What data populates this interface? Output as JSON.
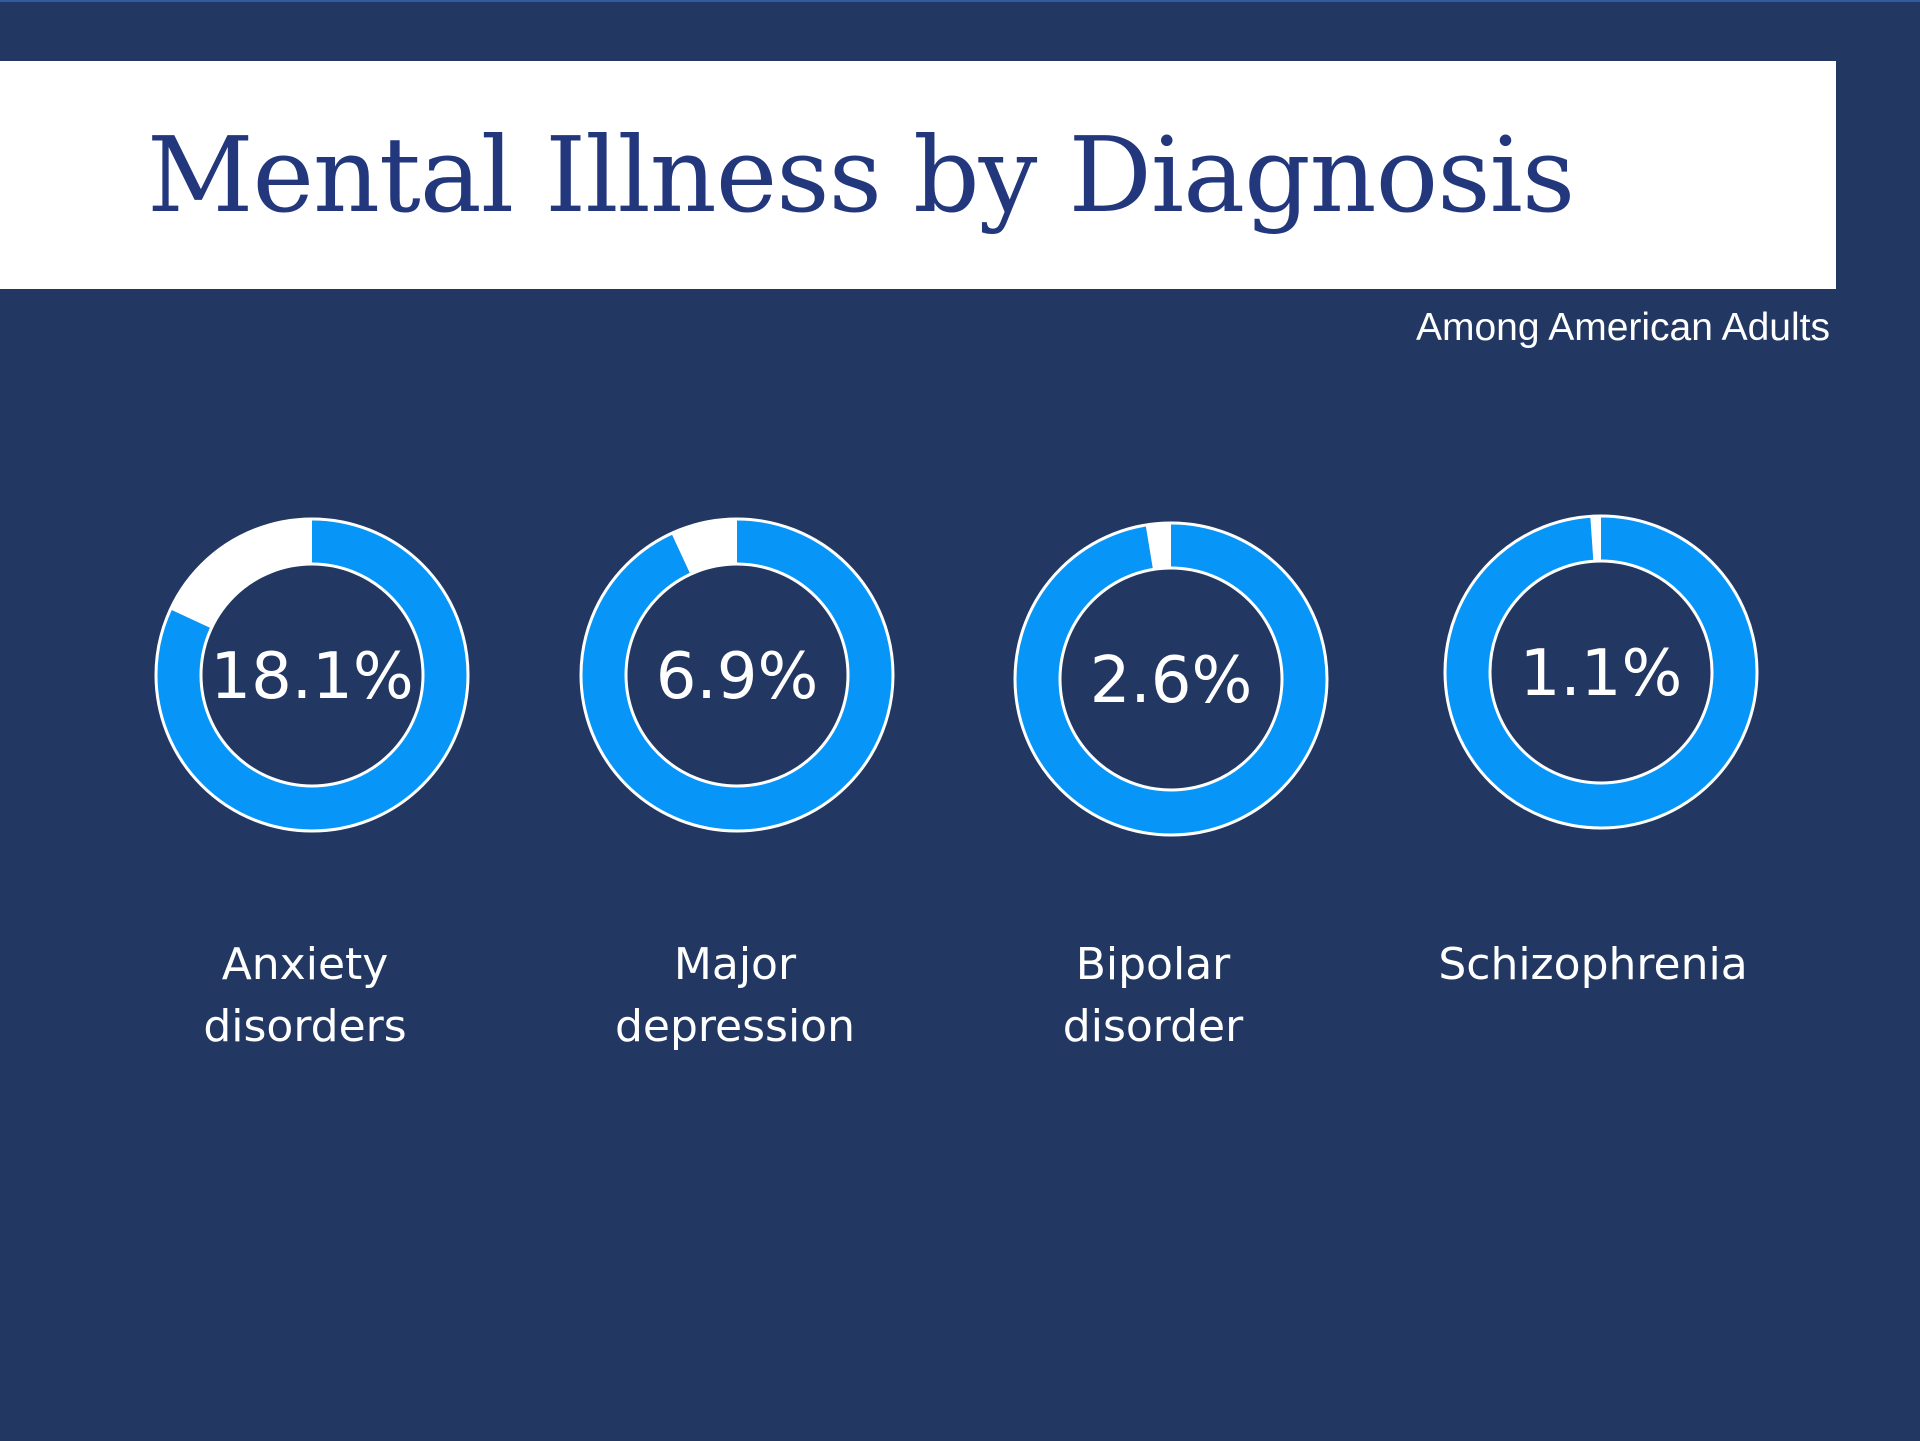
{
  "chart_data": {
    "type": "pie",
    "title": "Mental Illness by Diagnosis",
    "subtitle": "Among American Adults",
    "categories": [
      "Anxiety\ndisorders",
      "Major\ndepression",
      "Bipolar\ndisorder",
      "Schizophrenia"
    ],
    "values": [
      18.1,
      6.9,
      2.6,
      1.1
    ],
    "value_labels": [
      "18.1%",
      "6.9%",
      "2.6%",
      "1.1%"
    ],
    "unit": "%",
    "style": "donut",
    "colors": {
      "filled": "#0796f7",
      "remainder": "#ffffff",
      "outline": "#ffffff",
      "background": "#223762",
      "title": "#23377d"
    }
  }
}
